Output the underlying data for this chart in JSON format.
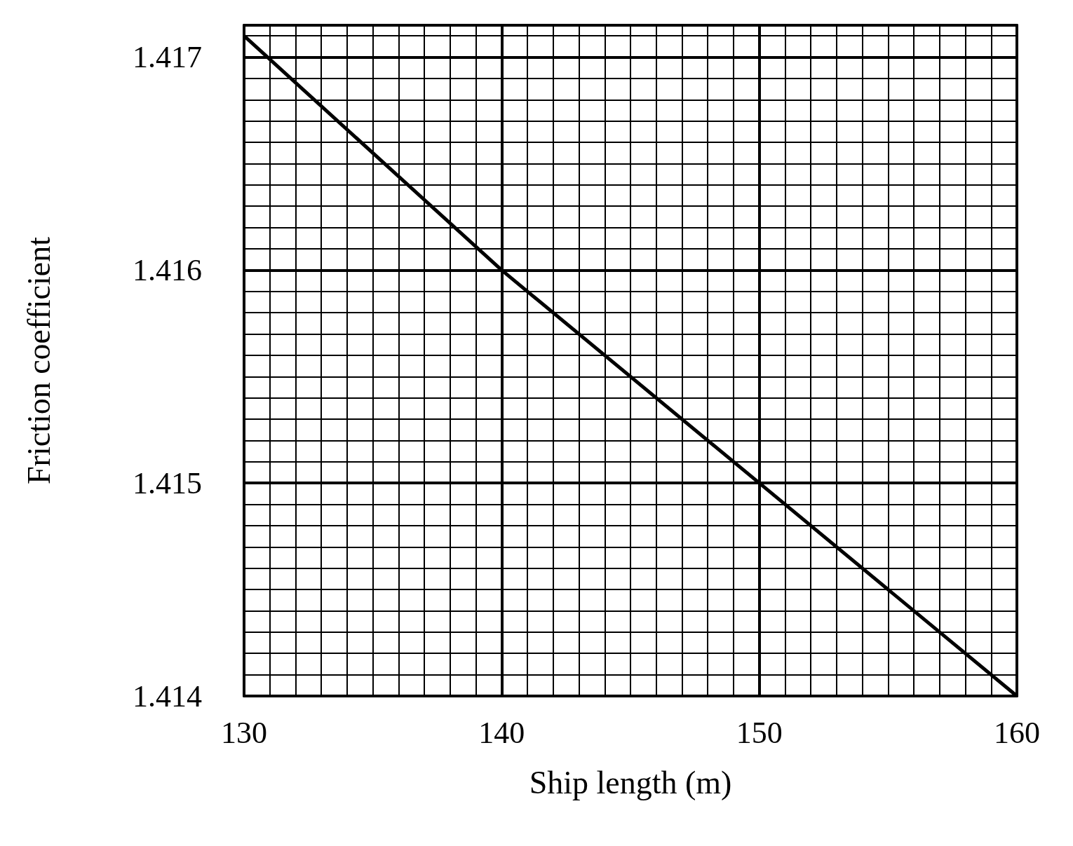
{
  "chart_data": {
    "type": "line",
    "xlabel": "Ship length (m)",
    "ylabel": "Friction coefficient",
    "x": [
      130,
      140,
      150,
      160
    ],
    "series": [
      {
        "color": "#000000",
        "values": [
          1.4171,
          1.416,
          1.415,
          1.414
        ]
      }
    ],
    "xlim": [
      130,
      160
    ],
    "xticks": [
      130,
      140,
      150,
      160
    ],
    "ylim": [
      1.414,
      1.41715
    ],
    "yticks": [
      1.414,
      1.415,
      1.416,
      1.417
    ],
    "grid": true,
    "marker": "none",
    "line_style": "solid"
  }
}
